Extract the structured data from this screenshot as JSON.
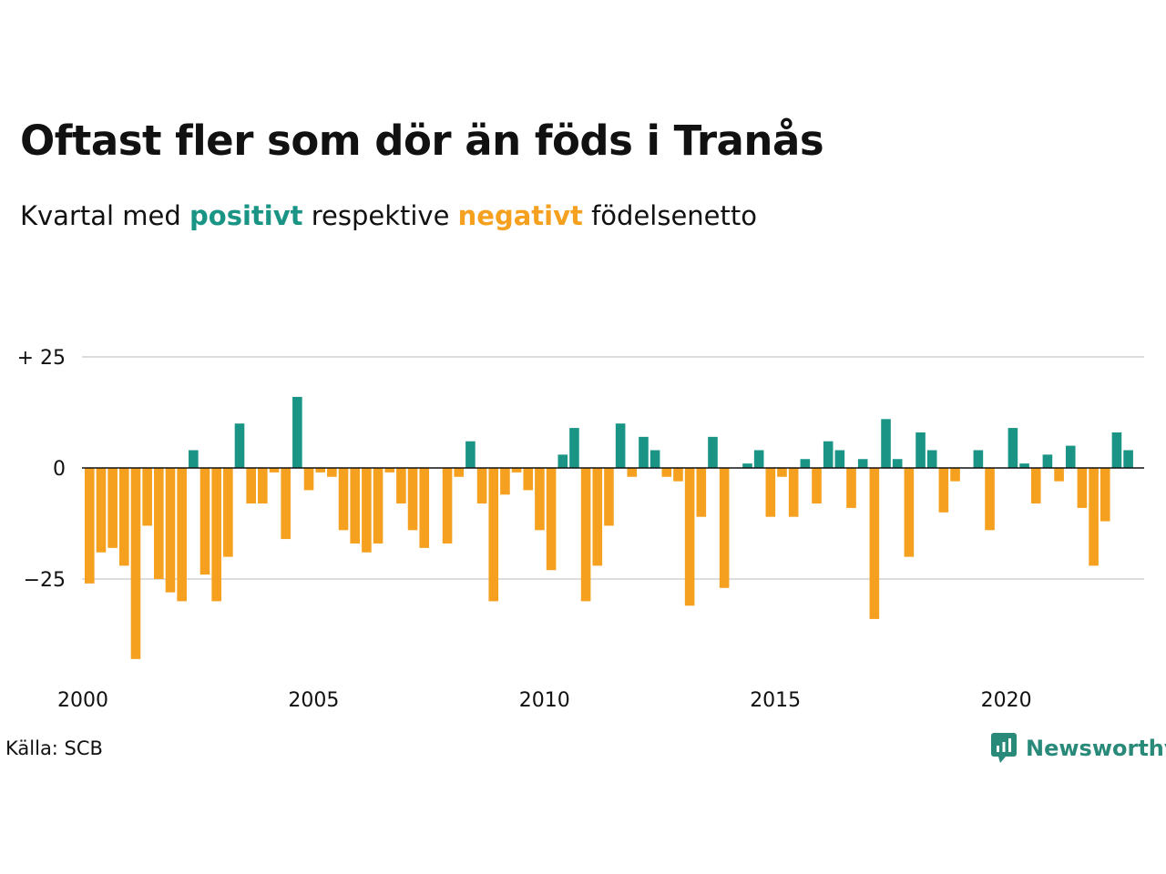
{
  "title": "Oftast fler som dör än föds i Tranås",
  "subtitle": {
    "prefix": "Kvartal med ",
    "positive_word": "positivt",
    "middle": " respektive ",
    "negative_word": "negativt",
    "suffix": " födelsenetto"
  },
  "source": "Källa: SCB",
  "brand": {
    "name": "Newsworthy",
    "icon": "newsworthy-logo-icon"
  },
  "colors": {
    "positive": "#1a9585",
    "negative": "#f5a01e",
    "grid": "#dddddd",
    "zero": "#111111",
    "brand": "#2a8a7a"
  },
  "chart_data": {
    "type": "bar",
    "x_label_ticks": [
      "2000",
      "2005",
      "2010",
      "2015",
      "2020"
    ],
    "y_tick_labels": [
      "+ 25",
      "0",
      "−25"
    ],
    "y_tick_values": [
      25,
      0,
      -25
    ],
    "ylim": [
      -50,
      25
    ],
    "grid": true,
    "start_year": 2000,
    "quarters_per_year": 4,
    "values": [
      -26,
      -19,
      -18,
      -22,
      -43,
      -13,
      -25,
      -28,
      -30,
      4,
      -24,
      -30,
      -20,
      10,
      -8,
      -8,
      -1,
      -16,
      16,
      -5,
      -1,
      -2,
      -14,
      -17,
      -19,
      -17,
      -1,
      -8,
      -14,
      -18,
      0,
      -17,
      -2,
      6,
      -8,
      -30,
      -6,
      -1,
      -5,
      -14,
      -23,
      3,
      9,
      -30,
      -22,
      -13,
      10,
      -2,
      7,
      4,
      -2,
      -3,
      -31,
      -11,
      7,
      -27,
      0,
      1,
      4,
      -11,
      -2,
      -11,
      2,
      -8,
      6,
      4,
      -9,
      2,
      -34,
      11,
      2,
      -20,
      8,
      4,
      -10,
      -3,
      0,
      4,
      -14,
      0,
      9,
      1,
      -8,
      3,
      -3,
      5,
      -9,
      -22,
      -12,
      8,
      4
    ]
  }
}
